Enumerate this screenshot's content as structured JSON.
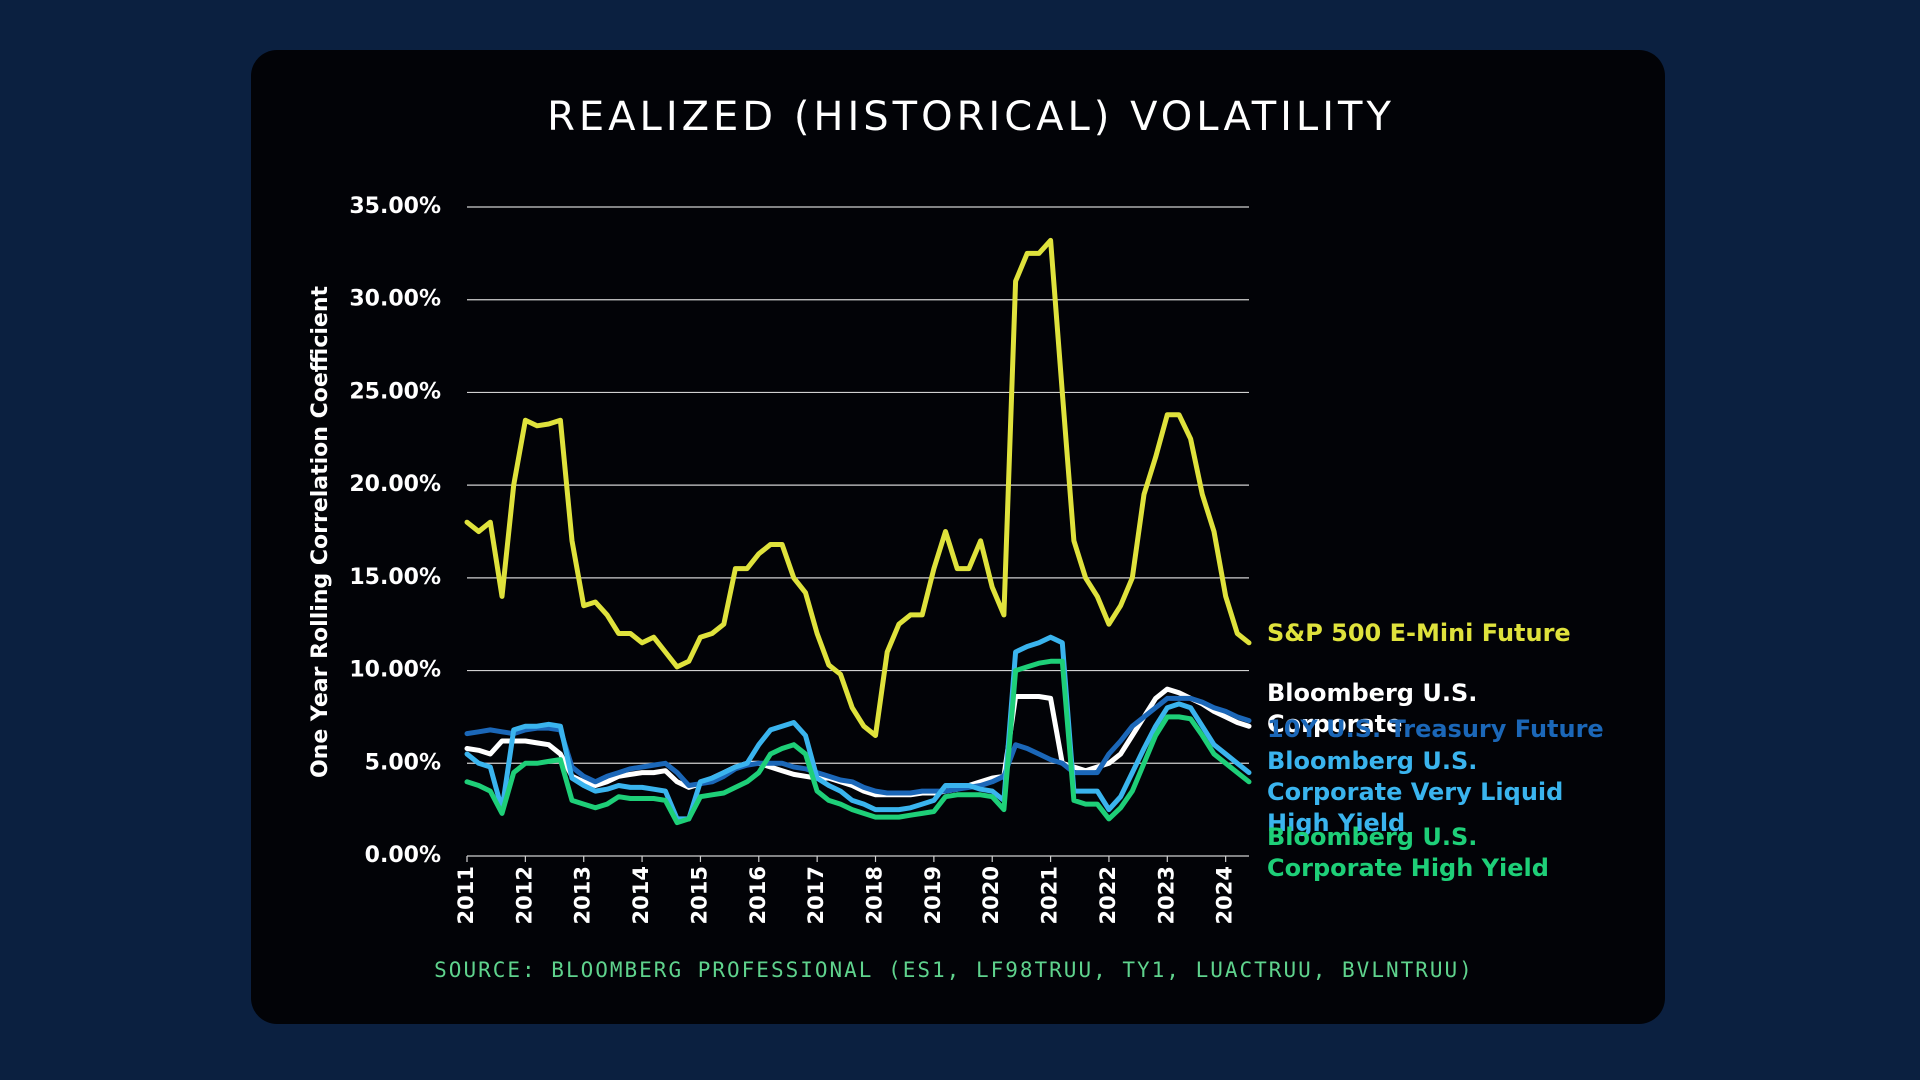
{
  "chart_data": {
    "type": "line",
    "title": "REALIZED (HISTORICAL) VOLATILITY",
    "y_label": "One Year Rolling Correlation Coefficient",
    "source": "SOURCE: BLOOMBERG PROFESSIONAL (ES1, LF98TRUU, TY1, LUACTRUU, BVLNTRUU)",
    "x": [
      2011.0,
      2011.2,
      2011.4,
      2011.6,
      2011.8,
      2012.0,
      2012.2,
      2012.4,
      2012.6,
      2012.8,
      2013.0,
      2013.2,
      2013.4,
      2013.6,
      2013.8,
      2014.0,
      2014.2,
      2014.4,
      2014.6,
      2014.8,
      2015.0,
      2015.2,
      2015.4,
      2015.6,
      2015.8,
      2016.0,
      2016.2,
      2016.4,
      2016.6,
      2016.8,
      2017.0,
      2017.2,
      2017.4,
      2017.6,
      2017.8,
      2018.0,
      2018.2,
      2018.4,
      2018.6,
      2018.8,
      2019.0,
      2019.2,
      2019.4,
      2019.6,
      2019.8,
      2020.0,
      2020.2,
      2020.4,
      2020.6,
      2020.8,
      2021.0,
      2021.2,
      2021.4,
      2021.6,
      2021.8,
      2022.0,
      2022.2,
      2022.4,
      2022.6,
      2022.8,
      2023.0,
      2023.2,
      2023.4,
      2023.6,
      2023.8,
      2024.0,
      2024.2,
      2024.4
    ],
    "xlim": [
      2011,
      2024.4
    ],
    "xticks": [
      2011,
      2012,
      2013,
      2014,
      2015,
      2016,
      2017,
      2018,
      2019,
      2020,
      2021,
      2022,
      2023,
      2024
    ],
    "ylim": [
      0,
      35
    ],
    "yticks": [
      {
        "value": 0,
        "label": "0.00%"
      },
      {
        "value": 5,
        "label": "5.00%"
      },
      {
        "value": 10,
        "label": "10.00%"
      },
      {
        "value": 15,
        "label": "15.00%"
      },
      {
        "value": 20,
        "label": "20.00%"
      },
      {
        "value": 25,
        "label": "25.00%"
      },
      {
        "value": 30,
        "label": "30.00%"
      },
      {
        "value": 35,
        "label": "35.00%"
      }
    ],
    "grid": true,
    "legend": "right",
    "series": [
      {
        "name": "S&P 500 E-Mini Future",
        "color": "#dfe23c",
        "values": [
          18,
          17.5,
          18,
          14,
          20,
          23.5,
          23.2,
          23.3,
          23.5,
          17,
          13.5,
          13.7,
          13,
          12,
          12,
          11.5,
          11.8,
          11,
          10.2,
          10.5,
          11.8,
          12,
          12.5,
          15.5,
          15.5,
          16.3,
          16.8,
          16.8,
          15,
          14.2,
          12,
          10.3,
          9.8,
          8,
          7,
          6.5,
          11,
          12.5,
          13,
          13,
          15.5,
          17.5,
          15.5,
          15.5,
          17,
          14.5,
          13,
          31,
          32.5,
          32.5,
          33.2,
          25,
          17,
          15,
          14,
          12.5,
          13.5,
          15,
          19.5,
          21.5,
          23.8,
          23.8,
          22.5,
          19.5,
          17.5,
          14,
          12,
          11.5
        ]
      },
      {
        "name": "Bloomberg U.S. Corporate",
        "color": "#ffffff",
        "values": [
          5.8,
          5.7,
          5.5,
          6.2,
          6.2,
          6.2,
          6.1,
          6,
          5.5,
          4.3,
          4,
          3.8,
          4,
          4.3,
          4.4,
          4.5,
          4.5,
          4.6,
          4,
          3.7,
          3.9,
          4.2,
          4.5,
          4.8,
          5,
          5,
          4.8,
          4.6,
          4.4,
          4.3,
          4.2,
          4.2,
          4,
          3.8,
          3.5,
          3.3,
          3.3,
          3.3,
          3.3,
          3.4,
          3.4,
          3.5,
          3.6,
          3.8,
          4,
          4.2,
          4.3,
          8.6,
          8.6,
          8.6,
          8.5,
          5,
          4.8,
          4.6,
          4.8,
          5,
          5.5,
          6.5,
          7.5,
          8.5,
          9,
          8.8,
          8.5,
          8.2,
          7.8,
          7.5,
          7.2,
          7
        ]
      },
      {
        "name": "10Y U.S. Treasury Future",
        "color": "#1b67b8",
        "values": [
          6.6,
          6.7,
          6.8,
          6.7,
          6.6,
          6.8,
          6.9,
          6.9,
          6.8,
          4.8,
          4.3,
          4,
          4.3,
          4.5,
          4.7,
          4.8,
          4.9,
          5,
          4.5,
          3.8,
          3.9,
          4,
          4.3,
          4.7,
          4.9,
          5,
          5,
          5,
          4.8,
          4.7,
          4.5,
          4.3,
          4.1,
          4,
          3.7,
          3.5,
          3.4,
          3.4,
          3.4,
          3.5,
          3.5,
          3.5,
          3.6,
          3.7,
          3.8,
          4,
          4.3,
          6,
          5.8,
          5.5,
          5.2,
          5,
          4.5,
          4.5,
          4.5,
          5.5,
          6.2,
          7,
          7.5,
          8,
          8.5,
          8.5,
          8.5,
          8.3,
          8,
          7.8,
          7.5,
          7.3
        ]
      },
      {
        "name": "Bloomberg U.S. Corporate Very Liquid High Yield",
        "color": "#3ab4ee",
        "values": [
          5.5,
          5,
          4.8,
          2.5,
          6.8,
          7,
          7,
          7.1,
          7,
          4.2,
          3.8,
          3.5,
          3.6,
          3.8,
          3.7,
          3.7,
          3.6,
          3.5,
          2,
          2,
          4,
          4.2,
          4.5,
          4.8,
          5,
          6,
          6.8,
          7,
          7.2,
          6.5,
          4.2,
          3.8,
          3.5,
          3,
          2.8,
          2.5,
          2.5,
          2.5,
          2.6,
          2.8,
          3,
          3.8,
          3.8,
          3.8,
          3.6,
          3.5,
          3,
          11,
          11.3,
          11.5,
          11.8,
          11.5,
          3.5,
          3.5,
          3.5,
          2.5,
          3.2,
          4.5,
          5.8,
          7,
          8,
          8.2,
          8,
          7,
          6,
          5.5,
          5,
          4.5
        ]
      },
      {
        "name": "Bloomberg U.S. Corporate High Yield",
        "color": "#1ecf78",
        "values": [
          4,
          3.8,
          3.5,
          2.3,
          4.5,
          5,
          5,
          5.1,
          5.2,
          3,
          2.8,
          2.6,
          2.8,
          3.2,
          3.1,
          3.1,
          3.1,
          3,
          1.8,
          2,
          3.2,
          3.3,
          3.4,
          3.7,
          4,
          4.5,
          5.5,
          5.8,
          6,
          5.5,
          3.5,
          3,
          2.8,
          2.5,
          2.3,
          2.1,
          2.1,
          2.1,
          2.2,
          2.3,
          2.4,
          3.2,
          3.3,
          3.3,
          3.3,
          3.2,
          2.5,
          10,
          10.2,
          10.4,
          10.5,
          10.5,
          3,
          2.8,
          2.8,
          2,
          2.6,
          3.5,
          5,
          6.5,
          7.5,
          7.5,
          7.4,
          6.5,
          5.5,
          5,
          4.5,
          4
        ]
      }
    ]
  }
}
